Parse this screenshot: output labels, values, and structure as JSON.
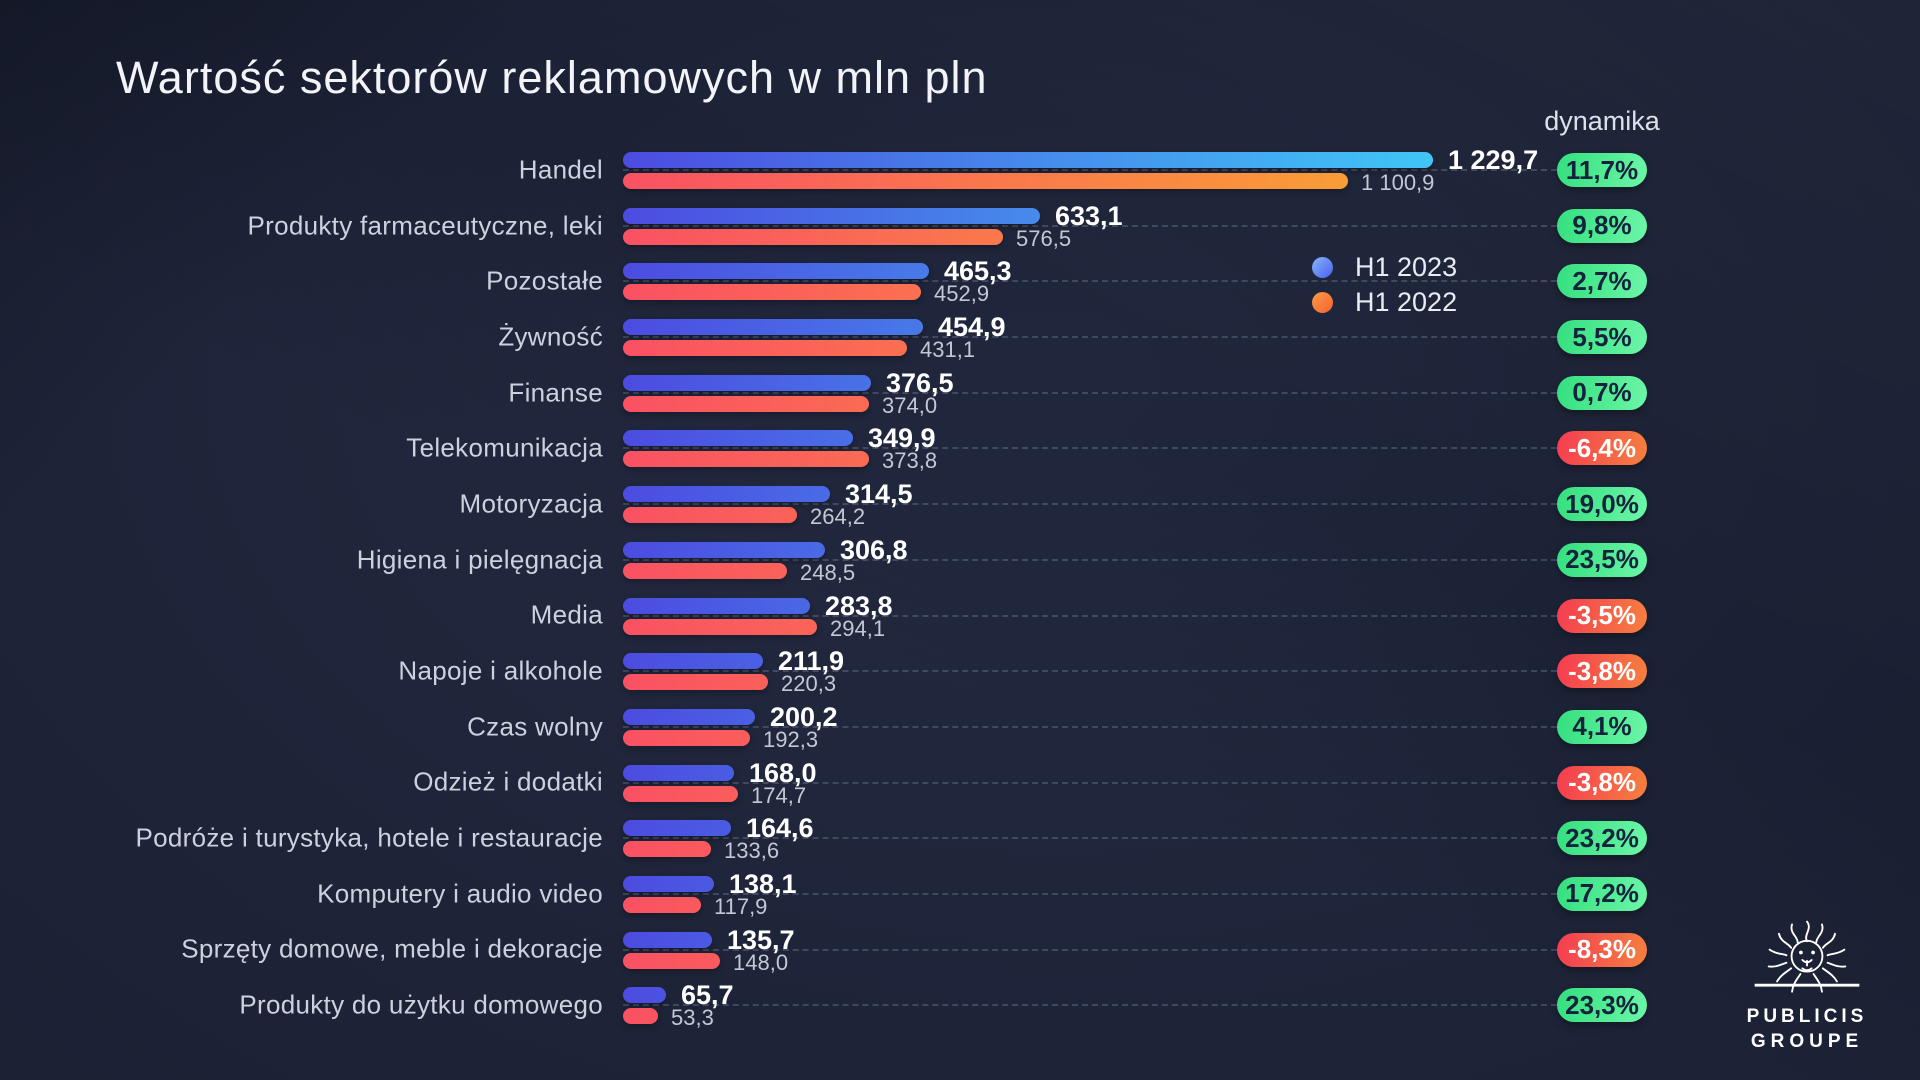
{
  "title": "Wartość sektorów reklamowych w mln pln",
  "dynamics_header": "dynamika",
  "legend": {
    "h1_2023": {
      "label": "H1 2023",
      "color": "#4f8df5"
    },
    "h1_2022": {
      "label": "H1 2022",
      "color": "#f97e3d"
    }
  },
  "logo": {
    "line1": "PUBLICIS",
    "line2": "GROUPE"
  },
  "colors": {
    "background": "#1b2134",
    "bar_2023_gradient": [
      "#4c4ce0",
      "#40c6f6"
    ],
    "bar_2022_gradient": [
      "#fa5163",
      "#f99d36"
    ],
    "badge_positive": [
      "#34df7e",
      "#6cf6a8"
    ],
    "badge_negative": [
      "#f53c52",
      "#f5803f"
    ]
  },
  "chart_data": {
    "type": "bar",
    "orientation": "horizontal",
    "title": "Wartość sektorów reklamowych w mln pln",
    "unit": "mln pln",
    "legend_position": "right",
    "grid": "dashed-horizontal",
    "xlim": [
      0,
      1229.7
    ],
    "series_names": [
      "H1 2023",
      "H1 2022"
    ],
    "rows": [
      {
        "label": "Handel",
        "v2023": 1229.7,
        "v2022": 1100.9,
        "v2023_label": "1 229,7",
        "v2022_label": "1 100,9",
        "dynamics": "11,7%",
        "positive": true
      },
      {
        "label": "Produkty farmaceutyczne, leki",
        "v2023": 633.1,
        "v2022": 576.5,
        "v2023_label": "633,1",
        "v2022_label": "576,5",
        "dynamics": "9,8%",
        "positive": true
      },
      {
        "label": "Pozostałe",
        "v2023": 465.3,
        "v2022": 452.9,
        "v2023_label": "465,3",
        "v2022_label": "452,9",
        "dynamics": "2,7%",
        "positive": true
      },
      {
        "label": "Żywność",
        "v2023": 454.9,
        "v2022": 431.1,
        "v2023_label": "454,9",
        "v2022_label": "431,1",
        "dynamics": "5,5%",
        "positive": true
      },
      {
        "label": "Finanse",
        "v2023": 376.5,
        "v2022": 374.0,
        "v2023_label": "376,5",
        "v2022_label": "374,0",
        "dynamics": "0,7%",
        "positive": true
      },
      {
        "label": "Telekomunikacja",
        "v2023": 349.9,
        "v2022": 373.8,
        "v2023_label": "349,9",
        "v2022_label": "373,8",
        "dynamics": "-6,4%",
        "positive": false
      },
      {
        "label": "Motoryzacja",
        "v2023": 314.5,
        "v2022": 264.2,
        "v2023_label": "314,5",
        "v2022_label": "264,2",
        "dynamics": "19,0%",
        "positive": true
      },
      {
        "label": "Higiena i pielęgnacja",
        "v2023": 306.8,
        "v2022": 248.5,
        "v2023_label": "306,8",
        "v2022_label": "248,5",
        "dynamics": "23,5%",
        "positive": true
      },
      {
        "label": "Media",
        "v2023": 283.8,
        "v2022": 294.1,
        "v2023_label": "283,8",
        "v2022_label": "294,1",
        "dynamics": "-3,5%",
        "positive": false
      },
      {
        "label": "Napoje i alkohole",
        "v2023": 211.9,
        "v2022": 220.3,
        "v2023_label": "211,9",
        "v2022_label": "220,3",
        "dynamics": "-3,8%",
        "positive": false
      },
      {
        "label": "Czas wolny",
        "v2023": 200.2,
        "v2022": 192.3,
        "v2023_label": "200,2",
        "v2022_label": "192,3",
        "dynamics": "4,1%",
        "positive": true
      },
      {
        "label": "Odzież i dodatki",
        "v2023": 168.0,
        "v2022": 174.7,
        "v2023_label": "168,0",
        "v2022_label": "174,7",
        "dynamics": "-3,8%",
        "positive": false
      },
      {
        "label": "Podróże i turystyka, hotele i restauracje",
        "v2023": 164.6,
        "v2022": 133.6,
        "v2023_label": "164,6",
        "v2022_label": "133,6",
        "dynamics": "23,2%",
        "positive": true
      },
      {
        "label": "Komputery i audio video",
        "v2023": 138.1,
        "v2022": 117.9,
        "v2023_label": "138,1",
        "v2022_label": "117,9",
        "dynamics": "17,2%",
        "positive": true
      },
      {
        "label": "Sprzęty domowe, meble i dekoracje",
        "v2023": 135.7,
        "v2022": 148.0,
        "v2023_label": "135,7",
        "v2022_label": "148,0",
        "dynamics": "-8,3%",
        "positive": false
      },
      {
        "label": "Produkty do użytku domowego",
        "v2023": 65.7,
        "v2022": 53.3,
        "v2023_label": "65,7",
        "v2022_label": "53,3",
        "dynamics": "23,3%",
        "positive": true
      }
    ]
  }
}
